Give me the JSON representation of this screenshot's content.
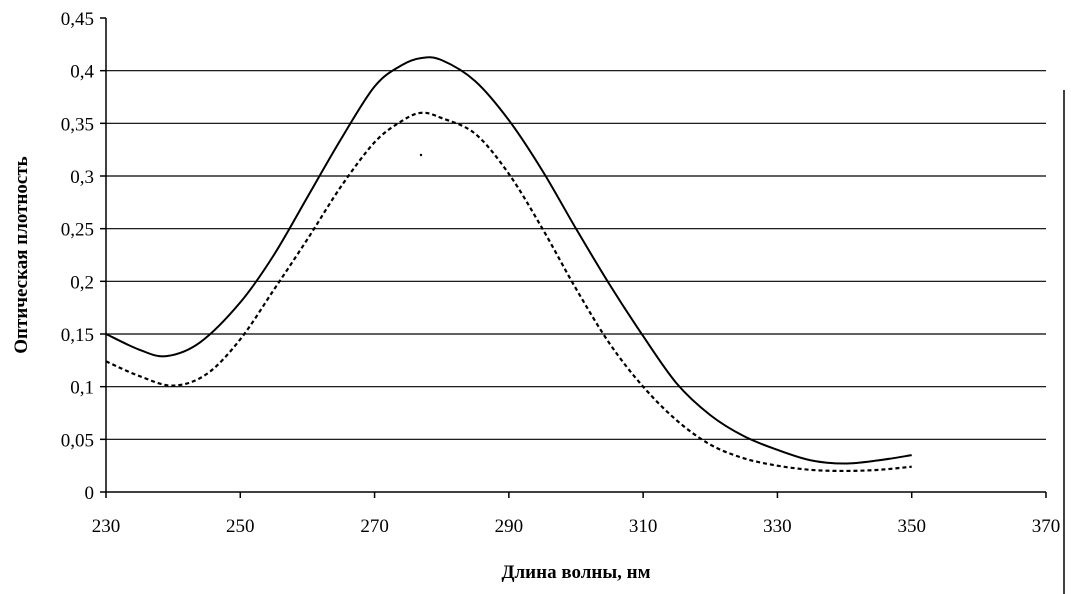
{
  "chart_data": {
    "type": "line",
    "title": "",
    "xlabel": "Длина волны, нм",
    "ylabel": "Оптическая плотность",
    "xlim": [
      230,
      370
    ],
    "ylim": [
      0,
      0.45
    ],
    "x_ticks": [
      "230",
      "250",
      "270",
      "290",
      "310",
      "330",
      "350",
      "370"
    ],
    "y_ticks": [
      "0",
      "0,05",
      "0,1",
      "0,15",
      "0,2",
      "0,25",
      "0,3",
      "0,35",
      "0,4",
      "0,45"
    ],
    "grid": "horizontal",
    "legend": "none",
    "series": [
      {
        "style": "solid",
        "color": "#000000",
        "x": [
          230,
          235,
          239,
          244,
          250,
          255,
          260,
          265,
          270,
          274,
          277,
          280,
          285,
          290,
          295,
          300,
          305,
          310,
          315,
          320,
          325,
          330,
          335,
          340,
          345,
          350
        ],
        "y": [
          0.15,
          0.135,
          0.129,
          0.142,
          0.18,
          0.225,
          0.28,
          0.335,
          0.385,
          0.405,
          0.412,
          0.41,
          0.39,
          0.353,
          0.305,
          0.25,
          0.197,
          0.148,
          0.103,
          0.073,
          0.053,
          0.04,
          0.03,
          0.027,
          0.03,
          0.035
        ]
      },
      {
        "style": "dashed",
        "color": "#000000",
        "x": [
          230,
          235,
          240,
          245,
          250,
          255,
          260,
          265,
          270,
          274,
          277,
          280,
          285,
          290,
          295,
          300,
          305,
          310,
          315,
          320,
          325,
          330,
          335,
          340,
          345,
          350
        ],
        "y": [
          0.124,
          0.11,
          0.101,
          0.112,
          0.145,
          0.192,
          0.24,
          0.29,
          0.332,
          0.352,
          0.36,
          0.355,
          0.34,
          0.302,
          0.25,
          0.193,
          0.141,
          0.1,
          0.068,
          0.045,
          0.032,
          0.025,
          0.021,
          0.02,
          0.021,
          0.024
        ]
      }
    ]
  }
}
